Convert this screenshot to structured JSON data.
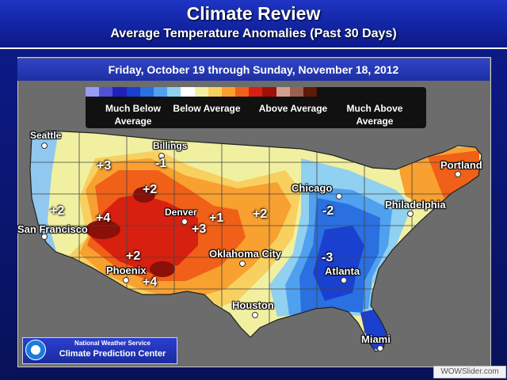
{
  "header": {
    "title": "Climate Review",
    "subtitle": "Average Temperature Anomalies (Past 30 Days)"
  },
  "date_range": "Friday, October 19 through Sunday, November 18, 2012",
  "legend": {
    "labels": [
      "Much Below Average",
      "Below Average",
      "Above Average",
      "Much Above Average"
    ],
    "colors": [
      "#9a9af0",
      "#5050d8",
      "#2020b8",
      "#1a40d0",
      "#2a70e0",
      "#50a0f0",
      "#90d0f0",
      "#ffffff",
      "#f0f0a0",
      "#f8d060",
      "#f8a030",
      "#f06018",
      "#d82010",
      "#a01008",
      "#d0a090",
      "#9a6050",
      "#601808"
    ]
  },
  "cities": [
    "Seattle",
    "Billings",
    "Portland",
    "San Francisco",
    "Denver",
    "Chicago",
    "Philadelphia",
    "Oklahoma City",
    "Phoenix",
    "Atlanta",
    "Houston",
    "Miami"
  ],
  "anomalies": [
    "+3",
    "-1",
    "+2",
    "+2",
    "+4",
    "+1",
    "+3",
    "+2",
    "-2",
    "+2",
    "-3",
    "+4"
  ],
  "region_colors": {
    "coast_blue": "#90c8f0",
    "light_yellow": "#f0f0a0",
    "gold": "#f8d060",
    "orange": "#f8a030",
    "dark_orange": "#f06018",
    "red": "#d82010",
    "dark_red": "#8a1008",
    "light_blue": "#90d0f0",
    "mid_blue": "#50a0f0",
    "blue": "#2a70e0",
    "dark_blue": "#1a40d0"
  },
  "footer": {
    "nws_line1": "National Weather Service",
    "nws_line2": "Climate Prediction Center",
    "credit": "WOWSlider.com"
  }
}
